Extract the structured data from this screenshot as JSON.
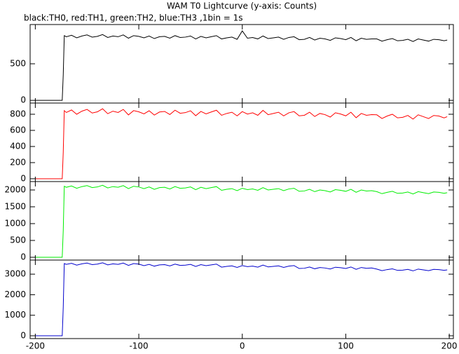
{
  "title": "WAM T0 Lightcurve (y-axis: Counts)",
  "subtitle": "black:TH0, red:TH1, green:TH2, blue:TH3 ,1bin = 1s",
  "chart_data": [
    {
      "type": "line",
      "x": [
        -200,
        -195,
        -190,
        -185,
        -180,
        -175,
        -174,
        -173,
        -172,
        -170,
        -165,
        -160,
        -155,
        -150,
        -145,
        -140,
        -135,
        -130,
        -125,
        -120,
        -115,
        -110,
        -105,
        -100,
        -95,
        -90,
        -85,
        -80,
        -75,
        -70,
        -65,
        -60,
        -55,
        -50,
        -45,
        -40,
        -35,
        -30,
        -25,
        -20,
        -15,
        -10,
        -5,
        0,
        5,
        10,
        15,
        20,
        25,
        30,
        35,
        40,
        45,
        50,
        55,
        60,
        65,
        70,
        75,
        80,
        85,
        90,
        95,
        100,
        105,
        110,
        115,
        120,
        125,
        130,
        135,
        140,
        145,
        150,
        155,
        160,
        165,
        170,
        175,
        180,
        185,
        190,
        195,
        198
      ],
      "series": [
        {
          "color": "#000000",
          "values": [
            0,
            0,
            0,
            0,
            0,
            0,
            0,
            350,
            885,
            870,
            890,
            855,
            880,
            895,
            865,
            875,
            900,
            860,
            880,
            870,
            895,
            850,
            885,
            875,
            855,
            880,
            845,
            870,
            875,
            850,
            885,
            860,
            865,
            880,
            840,
            875,
            855,
            870,
            885,
            840,
            855,
            865,
            835,
            950,
            850,
            860,
            840,
            880,
            845,
            855,
            865,
            835,
            860,
            870,
            830,
            835,
            860,
            825,
            850,
            840,
            820,
            855,
            845,
            830,
            860,
            815,
            850,
            835,
            840,
            840,
            810,
            830,
            845,
            815,
            820,
            835,
            805,
            840,
            825,
            810,
            835,
            830,
            815,
            825
          ]
        }
      ],
      "xlim": [
        -205,
        204
      ],
      "xticks": [
        -200,
        -100,
        0,
        100,
        200
      ],
      "ylim": [
        -37,
        1037
      ],
      "yticks": [
        0,
        500
      ]
    },
    {
      "type": "line",
      "x": [
        -200,
        -195,
        -190,
        -185,
        -180,
        -175,
        -174,
        -173,
        -172,
        -170,
        -165,
        -160,
        -155,
        -150,
        -145,
        -140,
        -135,
        -130,
        -125,
        -120,
        -115,
        -110,
        -105,
        -100,
        -95,
        -90,
        -85,
        -80,
        -75,
        -70,
        -65,
        -60,
        -55,
        -50,
        -45,
        -40,
        -35,
        -30,
        -25,
        -20,
        -15,
        -10,
        -5,
        0,
        5,
        10,
        15,
        20,
        25,
        30,
        35,
        40,
        45,
        50,
        55,
        60,
        65,
        70,
        75,
        80,
        85,
        90,
        95,
        100,
        105,
        110,
        115,
        120,
        125,
        130,
        135,
        140,
        145,
        150,
        155,
        160,
        165,
        170,
        175,
        180,
        185,
        190,
        195,
        198
      ],
      "series": [
        {
          "color": "#ff0000",
          "values": [
            0,
            0,
            0,
            0,
            0,
            0,
            0,
            330,
            845,
            822,
            853,
            800,
            838,
            860,
            815,
            830,
            868,
            807,
            838,
            822,
            860,
            792,
            845,
            830,
            805,
            843,
            790,
            828,
            835,
            797,
            850,
            812,
            820,
            843,
            782,
            835,
            805,
            828,
            850,
            787,
            810,
            825,
            780,
            833,
            802,
            818,
            787,
            848,
            795,
            810,
            825,
            780,
            818,
            833,
            780,
            787,
            825,
            772,
            810,
            795,
            765,
            818,
            803,
            780,
            825,
            757,
            810,
            787,
            795,
            793,
            747,
            778,
            800,
            755,
            762,
            785,
            740,
            793,
            770,
            747,
            785,
            778,
            755,
            770
          ]
        }
      ],
      "xlim": [
        -205,
        204
      ],
      "xticks": [
        -200,
        -100,
        0,
        100,
        200
      ],
      "ylim": [
        -35,
        939
      ],
      "yticks": [
        0,
        200,
        400,
        600,
        800
      ]
    },
    {
      "type": "line",
      "x": [
        -200,
        -195,
        -190,
        -185,
        -180,
        -175,
        -174,
        -173,
        -172,
        -170,
        -165,
        -160,
        -155,
        -150,
        -145,
        -140,
        -135,
        -130,
        -125,
        -120,
        -115,
        -110,
        -105,
        -100,
        -95,
        -90,
        -85,
        -80,
        -75,
        -70,
        -65,
        -60,
        -55,
        -50,
        -45,
        -40,
        -35,
        -30,
        -25,
        -20,
        -15,
        -10,
        -5,
        0,
        5,
        10,
        15,
        20,
        25,
        30,
        35,
        40,
        45,
        50,
        55,
        60,
        65,
        70,
        75,
        80,
        85,
        90,
        95,
        100,
        105,
        110,
        115,
        120,
        125,
        130,
        135,
        140,
        145,
        150,
        155,
        160,
        165,
        170,
        175,
        180,
        185,
        190,
        195,
        198
      ],
      "series": [
        {
          "color": "#00ee00",
          "values": [
            0,
            0,
            0,
            0,
            0,
            0,
            0,
            800,
            2110,
            2080,
            2120,
            2050,
            2100,
            2130,
            2070,
            2090,
            2140,
            2060,
            2100,
            2080,
            2130,
            2040,
            2110,
            2090,
            2040,
            2090,
            2020,
            2070,
            2080,
            2030,
            2100,
            2050,
            2060,
            2090,
            2010,
            2080,
            2040,
            2070,
            2100,
            1990,
            2020,
            2040,
            1980,
            2050,
            2010,
            2030,
            1990,
            2070,
            2000,
            2020,
            2040,
            1980,
            2030,
            2050,
            1960,
            1970,
            2020,
            1950,
            2000,
            1980,
            1940,
            2010,
            1990,
            1960,
            2020,
            1930,
            2000,
            1970,
            1980,
            1950,
            1890,
            1930,
            1960,
            1900,
            1910,
            1940,
            1880,
            1950,
            1920,
            1890,
            1940,
            1930,
            1900,
            1920
          ]
        }
      ],
      "xlim": [
        -205,
        204
      ],
      "xticks": [
        -200,
        -100,
        0,
        100,
        200
      ],
      "ylim": [
        -83,
        2250
      ],
      "yticks": [
        0,
        500,
        1000,
        1500,
        2000
      ]
    },
    {
      "type": "line",
      "x": [
        -200,
        -195,
        -190,
        -185,
        -180,
        -175,
        -174,
        -173,
        -172,
        -170,
        -165,
        -160,
        -155,
        -150,
        -145,
        -140,
        -135,
        -130,
        -125,
        -120,
        -115,
        -110,
        -105,
        -100,
        -95,
        -90,
        -85,
        -80,
        -75,
        -70,
        -65,
        -60,
        -55,
        -50,
        -45,
        -40,
        -35,
        -30,
        -25,
        -20,
        -15,
        -10,
        -5,
        0,
        5,
        10,
        15,
        20,
        25,
        30,
        35,
        40,
        45,
        50,
        55,
        60,
        65,
        70,
        75,
        80,
        85,
        90,
        95,
        100,
        105,
        110,
        115,
        120,
        125,
        130,
        135,
        140,
        145,
        150,
        155,
        160,
        165,
        170,
        175,
        180,
        185,
        190,
        195,
        198
      ],
      "series": [
        {
          "color": "#0000cc",
          "values": [
            0,
            0,
            0,
            0,
            0,
            0,
            0,
            1400,
            3515,
            3477,
            3528,
            3440,
            3503,
            3540,
            3465,
            3490,
            3553,
            3452,
            3503,
            3477,
            3540,
            3427,
            3515,
            3490,
            3415,
            3478,
            3390,
            3453,
            3465,
            3402,
            3490,
            3427,
            3440,
            3478,
            3377,
            3465,
            3415,
            3453,
            3490,
            3342,
            3380,
            3405,
            3330,
            3418,
            3367,
            3393,
            3342,
            3443,
            3355,
            3380,
            3405,
            3330,
            3393,
            3418,
            3275,
            3287,
            3350,
            3262,
            3325,
            3300,
            3250,
            3338,
            3313,
            3275,
            3350,
            3237,
            3325,
            3287,
            3300,
            3248,
            3172,
            3223,
            3260,
            3185,
            3197,
            3235,
            3160,
            3248,
            3210,
            3172,
            3235,
            3223,
            3185,
            3210
          ]
        }
      ],
      "xlim": [
        -205,
        204
      ],
      "xticks": [
        -200,
        -100,
        0,
        100,
        200
      ],
      "ylim": [
        -136,
        3686
      ],
      "yticks": [
        0,
        1000,
        2000,
        3000
      ]
    }
  ]
}
